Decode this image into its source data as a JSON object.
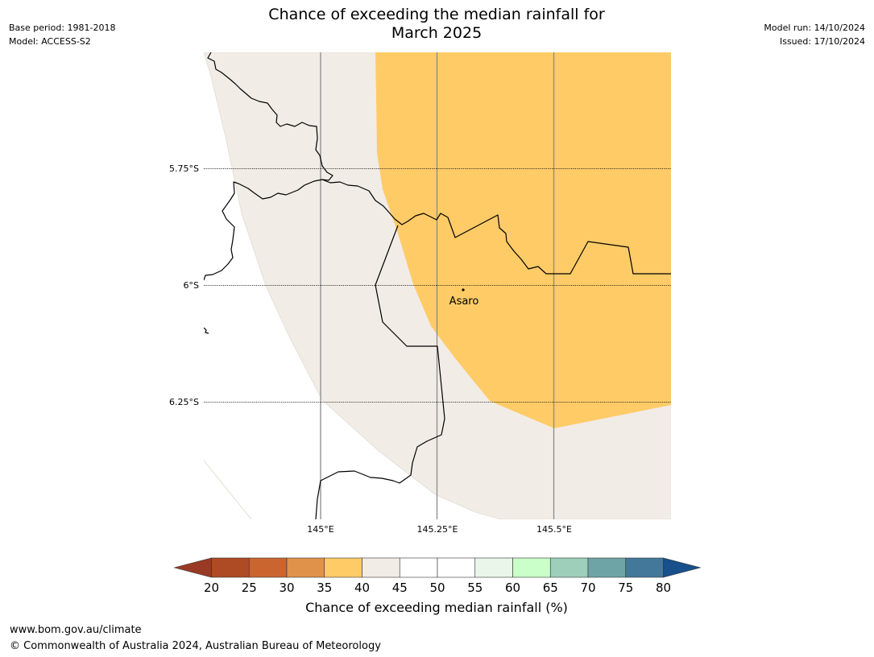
{
  "header": {
    "title_line1": "Chance of exceeding the median rainfall for",
    "title_line2": "March 2025",
    "base_period": "Base period: 1981-2018",
    "model": "Model: ACCESS-S2",
    "model_run": "Model run: 14/10/2024",
    "issued": "Issued: 17/10/2024"
  },
  "map": {
    "lat_labels": [
      "5.75°S",
      "6°S",
      "6.25°S"
    ],
    "lon_labels": [
      "145°E",
      "145.25°E",
      "145.5°E"
    ],
    "place": {
      "name": "Asaro"
    }
  },
  "colorbar": {
    "label": "Chance of exceeding median rainfall (%)",
    "ticks": [
      "20",
      "25",
      "30",
      "35",
      "40",
      "45",
      "50",
      "55",
      "60",
      "65",
      "70",
      "75",
      "80"
    ],
    "colors": [
      "#ae4a24",
      "#ca6530",
      "#e0924a",
      "#fecb67",
      "#f1ece6",
      "#ffffff",
      "#ffffff",
      "#eaf6ea",
      "#caffca",
      "#9dcfba",
      "#6ea4a6",
      "#43789a"
    ],
    "under_color": "#993a24",
    "over_color": "#17508a"
  },
  "footer": {
    "url": "www.bom.gov.au/climate",
    "copyright": "© Commonwealth of Australia 2024, Australian Bureau of Meteorology"
  }
}
